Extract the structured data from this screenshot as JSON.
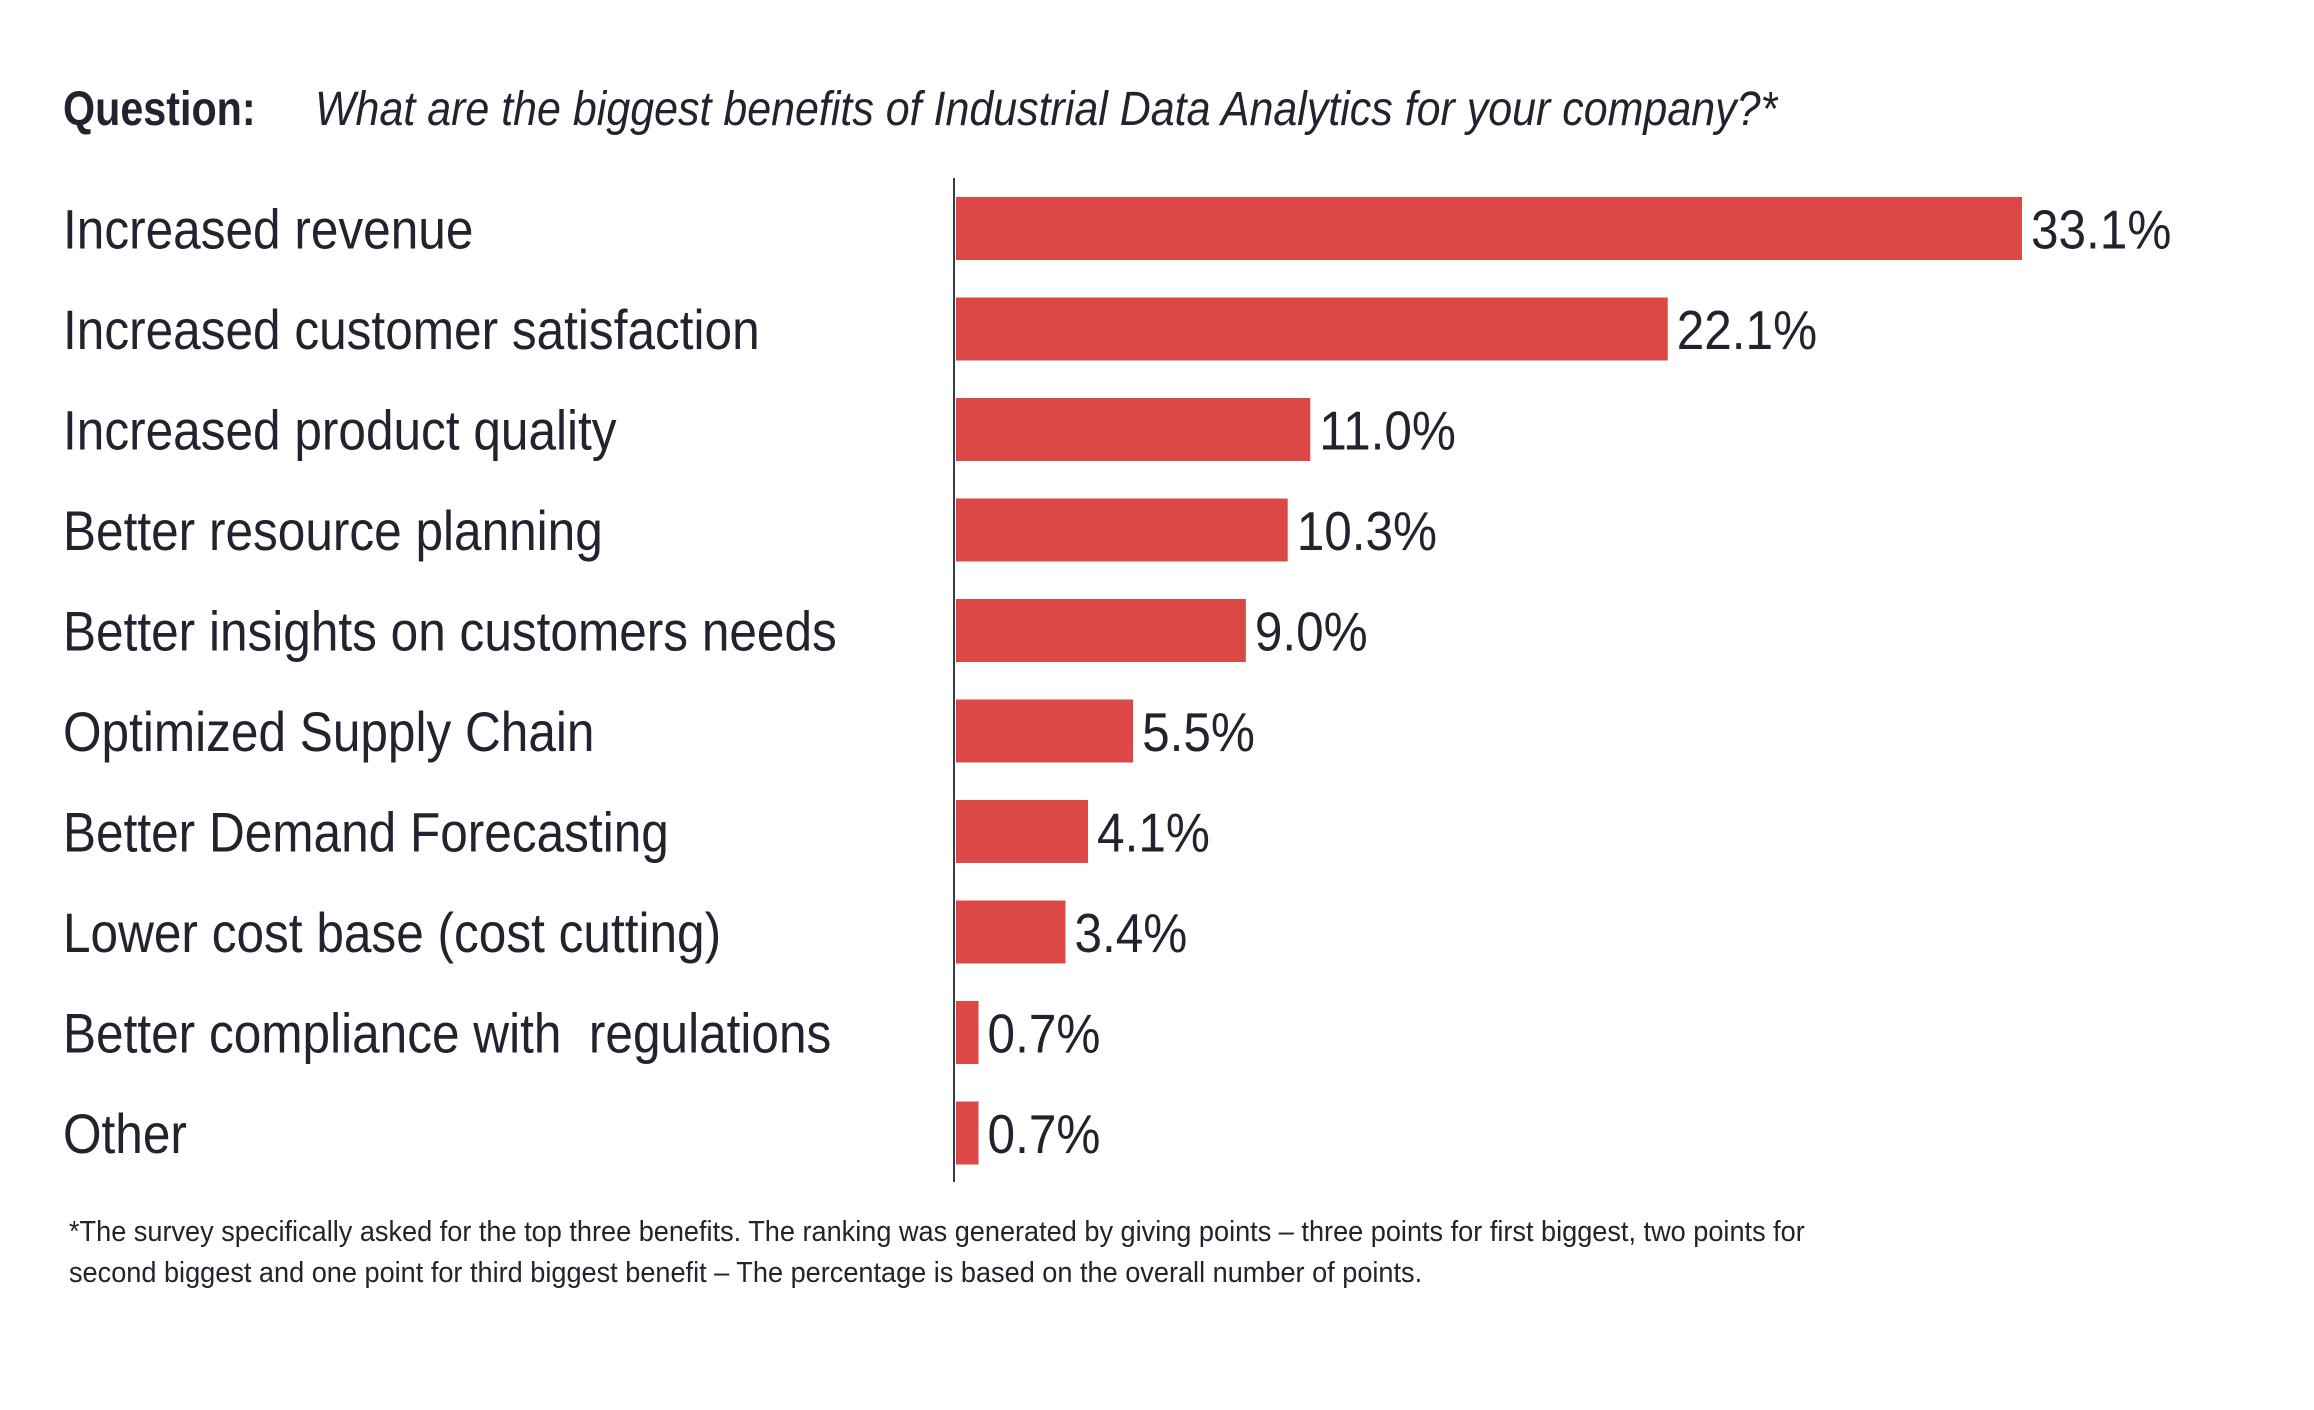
{
  "title": {
    "label": "Question:",
    "text": "What are the biggest benefits of Industrial Data Analytics for your company?*"
  },
  "footnote": {
    "line1": "*The survey specifically asked for the top three benefits. The ranking was generated by giving points – three points for first biggest, two points for",
    "line2": "second biggest and one point for third biggest benefit – The percentage is based on the overall number of points."
  },
  "colors": {
    "bar": "#DB4845",
    "text": "#22232E",
    "axis": "#3A3B45"
  },
  "chart_data": {
    "type": "bar",
    "orientation": "horizontal",
    "title": "What are the biggest benefits of Industrial Data Analytics for your company?*",
    "xlabel": "",
    "ylabel": "",
    "unit": "%",
    "xlim": [
      0,
      33.1
    ],
    "grid": false,
    "legend": "none",
    "categories": [
      "Increased revenue",
      "Increased customer satisfaction",
      "Increased product quality",
      "Better resource planning",
      "Better insights on customers needs",
      "Optimized Supply Chain",
      "Better Demand Forecasting",
      "Lower cost base (cost cutting)",
      "Better compliance with  regulations",
      "Other"
    ],
    "values": [
      33.1,
      22.1,
      11.0,
      10.3,
      9.0,
      5.5,
      4.1,
      3.4,
      0.7,
      0.7
    ],
    "data_labels": [
      "33.1%",
      "22.1%",
      "11.0%",
      "10.3%",
      "9.0%",
      "5.5%",
      "4.1%",
      "3.4%",
      "0.7%",
      "0.7%"
    ]
  }
}
